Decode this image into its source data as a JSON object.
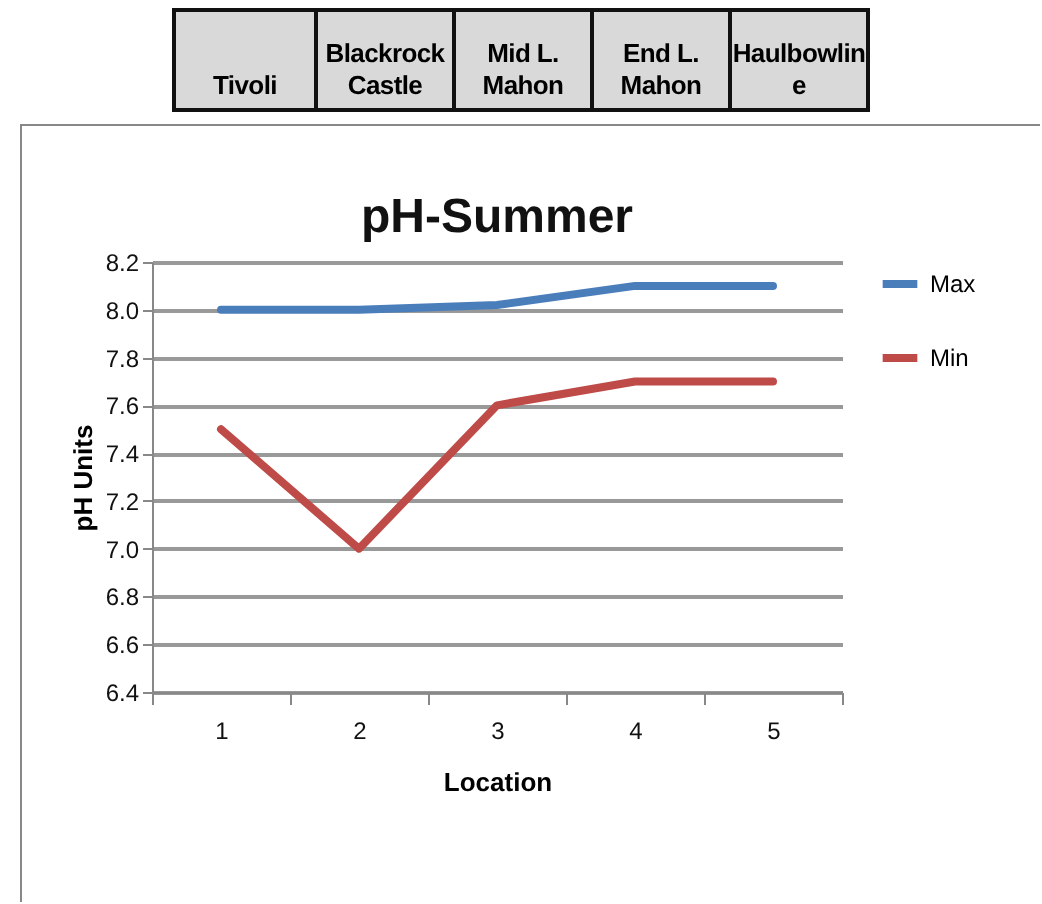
{
  "chart_data": {
    "type": "line",
    "title": "pH-Summer",
    "xlabel": "Location",
    "ylabel": "pH Units",
    "categories": [
      "1",
      "2",
      "3",
      "4",
      "5"
    ],
    "series": [
      {
        "name": "Max",
        "color": "#4a7ebb",
        "values": [
          8.0,
          8.0,
          8.02,
          8.1,
          8.1
        ]
      },
      {
        "name": "Min",
        "color": "#be4b48",
        "values": [
          7.5,
          7.0,
          7.6,
          7.7,
          7.7
        ]
      }
    ],
    "ylim": [
      6.4,
      8.2
    ],
    "yticks": [
      6.4,
      6.6,
      6.8,
      {
        "value": 7,
        "label": "7.0"
      },
      7.2,
      7.4,
      7.6,
      7.8,
      {
        "value": 8,
        "label": "8.0"
      },
      8.2
    ],
    "grid": "y",
    "legend": "right",
    "line_style": "solid",
    "annotations": [
      "Tivoli",
      "Blackrock Castle",
      "Mid L. Mahon",
      "End L. Mahon",
      "Haulbowline"
    ]
  }
}
